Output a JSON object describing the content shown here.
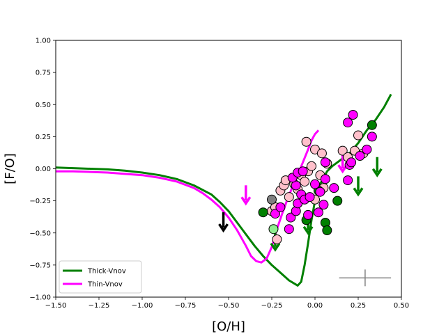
{
  "chart_data": {
    "type": "scatter",
    "xlabel": "[O/H]",
    "ylabel": "[F/O]",
    "xlim": [
      -1.5,
      0.5
    ],
    "ylim": [
      -1.0,
      1.0
    ],
    "xticks": [
      -1.5,
      -1.25,
      -1.0,
      -0.75,
      -0.5,
      -0.25,
      0.0,
      0.25,
      0.5
    ],
    "xtick_labels": [
      "−1.50",
      "−1.25",
      "−1.00",
      "−0.75",
      "−0.50",
      "−0.25",
      "0.00",
      "0.25",
      "0.50"
    ],
    "yticks": [
      -1.0,
      -0.75,
      -0.5,
      -0.25,
      0.0,
      0.25,
      0.5,
      0.75,
      1.0
    ],
    "ytick_labels": [
      "−1.00",
      "−0.75",
      "−0.50",
      "−0.25",
      "0.00",
      "0.25",
      "0.50",
      "0.75",
      "1.00"
    ],
    "grid": false,
    "legend_position": "lower-left",
    "series": [
      {
        "name": "Thick-Vnov",
        "kind": "line",
        "color": "#008000",
        "points": [
          [
            -1.5,
            0.01
          ],
          [
            -1.4,
            0.005
          ],
          [
            -1.3,
            0.0
          ],
          [
            -1.2,
            -0.005
          ],
          [
            -1.1,
            -0.015
          ],
          [
            -1.0,
            -0.03
          ],
          [
            -0.9,
            -0.05
          ],
          [
            -0.8,
            -0.08
          ],
          [
            -0.7,
            -0.13
          ],
          [
            -0.6,
            -0.2
          ],
          [
            -0.55,
            -0.26
          ],
          [
            -0.5,
            -0.33
          ],
          [
            -0.45,
            -0.42
          ],
          [
            -0.4,
            -0.51
          ],
          [
            -0.35,
            -0.6
          ],
          [
            -0.3,
            -0.68
          ],
          [
            -0.25,
            -0.75
          ],
          [
            -0.2,
            -0.81
          ],
          [
            -0.15,
            -0.87
          ],
          [
            -0.1,
            -0.91
          ],
          [
            -0.08,
            -0.88
          ],
          [
            -0.06,
            -0.75
          ],
          [
            -0.04,
            -0.58
          ],
          [
            -0.02,
            -0.4
          ],
          [
            0.0,
            -0.25
          ],
          [
            0.03,
            -0.12
          ],
          [
            0.07,
            -0.02
          ],
          [
            0.1,
            0.02
          ],
          [
            0.15,
            0.07
          ],
          [
            0.2,
            0.12
          ],
          [
            0.25,
            0.2
          ],
          [
            0.3,
            0.3
          ],
          [
            0.35,
            0.38
          ],
          [
            0.4,
            0.48
          ],
          [
            0.44,
            0.58
          ]
        ]
      },
      {
        "name": "Thin-Vnov",
        "kind": "line",
        "color": "#ff00ff",
        "points": [
          [
            -1.5,
            -0.02
          ],
          [
            -1.4,
            -0.02
          ],
          [
            -1.3,
            -0.025
          ],
          [
            -1.2,
            -0.03
          ],
          [
            -1.1,
            -0.04
          ],
          [
            -1.0,
            -0.05
          ],
          [
            -0.9,
            -0.07
          ],
          [
            -0.8,
            -0.1
          ],
          [
            -0.7,
            -0.15
          ],
          [
            -0.65,
            -0.19
          ],
          [
            -0.6,
            -0.24
          ],
          [
            -0.55,
            -0.3
          ],
          [
            -0.5,
            -0.38
          ],
          [
            -0.45,
            -0.48
          ],
          [
            -0.4,
            -0.6
          ],
          [
            -0.37,
            -0.68
          ],
          [
            -0.34,
            -0.72
          ],
          [
            -0.31,
            -0.73
          ],
          [
            -0.28,
            -0.7
          ],
          [
            -0.25,
            -0.61
          ],
          [
            -0.22,
            -0.47
          ],
          [
            -0.19,
            -0.35
          ],
          [
            -0.16,
            -0.24
          ],
          [
            -0.13,
            -0.14
          ],
          [
            -0.1,
            -0.05
          ],
          [
            -0.07,
            0.05
          ],
          [
            -0.04,
            0.15
          ],
          [
            -0.02,
            0.22
          ],
          [
            0.0,
            0.27
          ],
          [
            0.02,
            0.3
          ]
        ]
      }
    ],
    "points": [
      {
        "x": -0.22,
        "y": -0.55,
        "color": "#ffc0cb"
      },
      {
        "x": -0.24,
        "y": -0.47,
        "color": "#90ee90"
      },
      {
        "x": -0.25,
        "y": -0.33,
        "color": "#ffc0cb"
      },
      {
        "x": -0.23,
        "y": -0.3,
        "color": "#ffc0cb"
      },
      {
        "x": -0.25,
        "y": -0.24,
        "color": "#808080"
      },
      {
        "x": -0.2,
        "y": -0.17,
        "color": "#ffc0cb"
      },
      {
        "x": -0.18,
        "y": -0.13,
        "color": "#ffc0cb"
      },
      {
        "x": -0.17,
        "y": -0.09,
        "color": "#ffc0cb"
      },
      {
        "x": -0.15,
        "y": -0.22,
        "color": "#ffc0cb"
      },
      {
        "x": -0.12,
        "y": -0.12,
        "color": "#ffc0cb"
      },
      {
        "x": -0.1,
        "y": -0.16,
        "color": "#ffc0cb"
      },
      {
        "x": -0.08,
        "y": -0.05,
        "color": "#ffc0cb"
      },
      {
        "x": -0.06,
        "y": -0.1,
        "color": "#ffc0cb"
      },
      {
        "x": -0.04,
        "y": -0.02,
        "color": "#ffc0cb"
      },
      {
        "x": -0.05,
        "y": 0.21,
        "color": "#ffc0cb"
      },
      {
        "x": 0.0,
        "y": 0.15,
        "color": "#ffc0cb"
      },
      {
        "x": 0.04,
        "y": 0.12,
        "color": "#ffc0cb"
      },
      {
        "x": 0.07,
        "y": 0.04,
        "color": "#ffc0cb"
      },
      {
        "x": -0.02,
        "y": 0.02,
        "color": "#ffc0cb"
      },
      {
        "x": 0.03,
        "y": -0.05,
        "color": "#ffc0cb"
      },
      {
        "x": 0.05,
        "y": -0.15,
        "color": "#ffc0cb"
      },
      {
        "x": 0.0,
        "y": -0.24,
        "color": "#ffc0cb"
      },
      {
        "x": 0.16,
        "y": 0.14,
        "color": "#ffc0cb"
      },
      {
        "x": 0.19,
        "y": 0.09,
        "color": "#ffc0cb"
      },
      {
        "x": 0.23,
        "y": 0.14,
        "color": "#ffc0cb"
      },
      {
        "x": 0.25,
        "y": 0.26,
        "color": "#ffc0cb"
      },
      {
        "x": 0.28,
        "y": 0.12,
        "color": "#ffc0cb"
      },
      {
        "x": -0.3,
        "y": -0.34,
        "color": "#008000"
      },
      {
        "x": 0.02,
        "y": -0.17,
        "color": "#008000"
      },
      {
        "x": 0.13,
        "y": -0.25,
        "color": "#008000"
      },
      {
        "x": 0.06,
        "y": -0.42,
        "color": "#008000"
      },
      {
        "x": 0.07,
        "y": -0.48,
        "color": "#008000"
      },
      {
        "x": -0.05,
        "y": -0.4,
        "color": "#008000"
      },
      {
        "x": 0.33,
        "y": 0.34,
        "color": "#008000"
      },
      {
        "x": -0.23,
        "y": -0.35,
        "color": "#ff00ff"
      },
      {
        "x": -0.2,
        "y": -0.3,
        "color": "#ff00ff"
      },
      {
        "x": -0.15,
        "y": -0.47,
        "color": "#ff00ff"
      },
      {
        "x": -0.14,
        "y": -0.38,
        "color": "#ff00ff"
      },
      {
        "x": -0.11,
        "y": -0.33,
        "color": "#ff00ff"
      },
      {
        "x": -0.1,
        "y": -0.27,
        "color": "#ff00ff"
      },
      {
        "x": -0.08,
        "y": -0.2,
        "color": "#ff00ff"
      },
      {
        "x": -0.11,
        "y": -0.13,
        "color": "#ff00ff"
      },
      {
        "x": -0.13,
        "y": -0.07,
        "color": "#ff00ff"
      },
      {
        "x": -0.1,
        "y": -0.03,
        "color": "#ff00ff"
      },
      {
        "x": -0.07,
        "y": -0.02,
        "color": "#ff00ff"
      },
      {
        "x": -0.06,
        "y": -0.24,
        "color": "#ff00ff"
      },
      {
        "x": -0.03,
        "y": -0.22,
        "color": "#ff00ff"
      },
      {
        "x": -0.04,
        "y": -0.36,
        "color": "#ff00ff"
      },
      {
        "x": 0.02,
        "y": -0.34,
        "color": "#ff00ff"
      },
      {
        "x": 0.05,
        "y": -0.28,
        "color": "#ff00ff"
      },
      {
        "x": 0.0,
        "y": -0.12,
        "color": "#ff00ff"
      },
      {
        "x": 0.03,
        "y": -0.18,
        "color": "#ff00ff"
      },
      {
        "x": 0.06,
        "y": -0.08,
        "color": "#ff00ff"
      },
      {
        "x": 0.06,
        "y": 0.05,
        "color": "#ff00ff"
      },
      {
        "x": 0.11,
        "y": -0.15,
        "color": "#ff00ff"
      },
      {
        "x": 0.19,
        "y": -0.09,
        "color": "#ff00ff"
      },
      {
        "x": 0.2,
        "y": 0.03,
        "color": "#ff00ff"
      },
      {
        "x": 0.21,
        "y": 0.05,
        "color": "#ff00ff"
      },
      {
        "x": 0.26,
        "y": 0.1,
        "color": "#ff00ff"
      },
      {
        "x": 0.3,
        "y": 0.15,
        "color": "#ff00ff"
      },
      {
        "x": 0.22,
        "y": 0.42,
        "color": "#ff00ff"
      },
      {
        "x": 0.19,
        "y": 0.36,
        "color": "#ff00ff"
      },
      {
        "x": 0.33,
        "y": 0.25,
        "color": "#ff00ff"
      }
    ],
    "upper_limits": [
      {
        "x": -0.53,
        "y": -0.48,
        "color": "#000000"
      },
      {
        "x": -0.4,
        "y": -0.27,
        "color": "#ff00ff"
      },
      {
        "x": -0.23,
        "y": -0.63,
        "color": "#008000"
      },
      {
        "x": -0.04,
        "y": -0.5,
        "color": "#008000"
      },
      {
        "x": 0.16,
        "y": -0.02,
        "color": "#ff00ff"
      },
      {
        "x": 0.25,
        "y": -0.2,
        "color": "#008000"
      },
      {
        "x": 0.36,
        "y": -0.05,
        "color": "#008000"
      }
    ],
    "typical_error": {
      "x": 0.29,
      "y": -0.85,
      "xerr": 0.15,
      "yerr": 0.065,
      "color": "#808080"
    }
  }
}
